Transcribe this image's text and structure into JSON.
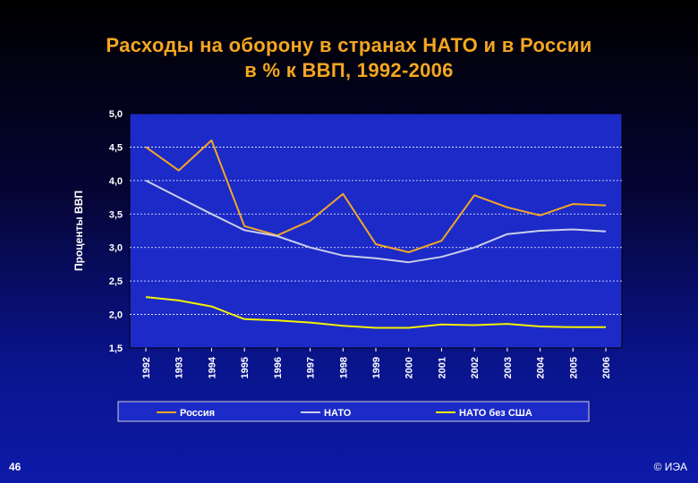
{
  "slide": {
    "title_line1": "Расходы на оборону в странах НАТО и в России",
    "title_line2": "в % к ВВП, 1992-2006",
    "page_number": "46",
    "copyright": "© ИЭА"
  },
  "colors": {
    "title": "#f5a623",
    "plot_bg": "#1c2ac8",
    "russia": "#f5a623",
    "nato": "#c9cfe8",
    "nato_ex_us": "#f2f200"
  },
  "chart_data": {
    "type": "line",
    "title": "",
    "xlabel": "",
    "ylabel": "Проценты ВВП",
    "ylim": [
      1.5,
      5.0
    ],
    "yticks": [
      "5,0",
      "4,5",
      "4,0",
      "3,5",
      "3,0",
      "2,5",
      "2,0",
      "1,5"
    ],
    "ytick_values": [
      5.0,
      4.5,
      4.0,
      3.5,
      3.0,
      2.5,
      2.0,
      1.5
    ],
    "grid": "horizontal dashed",
    "legend_position": "bottom",
    "categories": [
      "1992",
      "1993",
      "1994",
      "1995",
      "1996",
      "1997",
      "1998",
      "1999",
      "2000",
      "2001",
      "2002",
      "2003",
      "2004",
      "2005",
      "2006"
    ],
    "series": [
      {
        "name": "Россия",
        "color": "#f5a623",
        "values": [
          4.5,
          4.15,
          4.6,
          3.32,
          3.18,
          3.4,
          3.8,
          3.05,
          2.93,
          3.1,
          3.78,
          3.6,
          3.48,
          3.65,
          3.63
        ]
      },
      {
        "name": "НАТО",
        "color": "#c9cfe8",
        "values": [
          4.0,
          3.75,
          3.5,
          3.26,
          3.17,
          3.0,
          2.88,
          2.84,
          2.78,
          2.86,
          3.0,
          3.2,
          3.25,
          3.27,
          3.24
        ]
      },
      {
        "name": "НАТО без США",
        "color": "#f2f200",
        "values": [
          2.26,
          2.21,
          2.12,
          1.93,
          1.91,
          1.88,
          1.83,
          1.8,
          1.8,
          1.85,
          1.84,
          1.86,
          1.82,
          1.81,
          1.81
        ]
      }
    ]
  }
}
